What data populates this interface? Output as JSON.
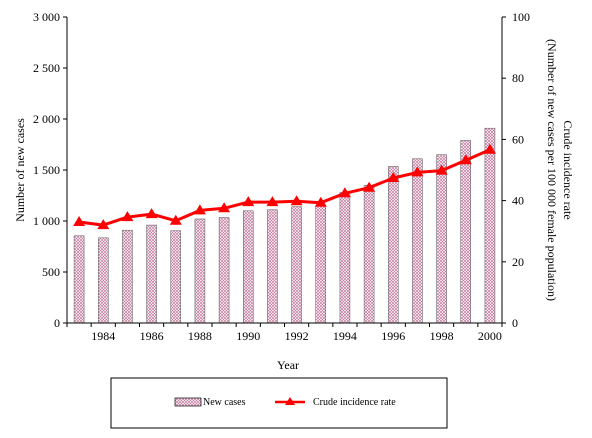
{
  "chart_data": {
    "type": "bar",
    "title": "",
    "xlabel": "Year",
    "ylabel_left": "Number of new cases",
    "ylabel_right_line1": "Crude incidence rate",
    "ylabel_right_line2": "(Number of new cases per 100 000 female population)",
    "ylim_left": [
      0,
      3000
    ],
    "ylim_right": [
      0,
      100
    ],
    "yticks_left": [
      0,
      500,
      1000,
      1500,
      2000,
      2500,
      3000
    ],
    "yticks_left_labels": [
      "0",
      "500",
      "1 000",
      "1 500",
      "2 000",
      "2 500",
      "3 000"
    ],
    "yticks_right": [
      0,
      20,
      40,
      60,
      80,
      100
    ],
    "yticks_right_labels": [
      "0",
      "20",
      "40",
      "60",
      "80",
      "100"
    ],
    "x_tick_labels": [
      "1984",
      "1986",
      "1988",
      "1990",
      "1992",
      "1994",
      "1996",
      "1998",
      "2000"
    ],
    "x": [
      1983,
      1984,
      1985,
      1986,
      1987,
      1988,
      1989,
      1990,
      1991,
      1992,
      1993,
      1994,
      1995,
      1996,
      1997,
      1998,
      1999,
      2000
    ],
    "series": [
      {
        "name": "New cases",
        "kind": "bar",
        "axis": "left",
        "color": "#f2c8dc",
        "values": [
          855,
          835,
          910,
          960,
          905,
          1020,
          1035,
          1100,
          1110,
          1140,
          1150,
          1280,
          1350,
          1535,
          1610,
          1650,
          1790,
          1910
        ]
      },
      {
        "name": "Crude incidence rate",
        "kind": "line",
        "axis": "right",
        "color": "#ff0000",
        "values": [
          33.0,
          32.0,
          34.6,
          35.6,
          33.4,
          36.8,
          37.5,
          39.5,
          39.5,
          39.8,
          39.3,
          42.4,
          44.2,
          47.4,
          49.2,
          49.8,
          53.2,
          56.6
        ]
      }
    ],
    "legend_position": "bottom",
    "grid": false
  }
}
